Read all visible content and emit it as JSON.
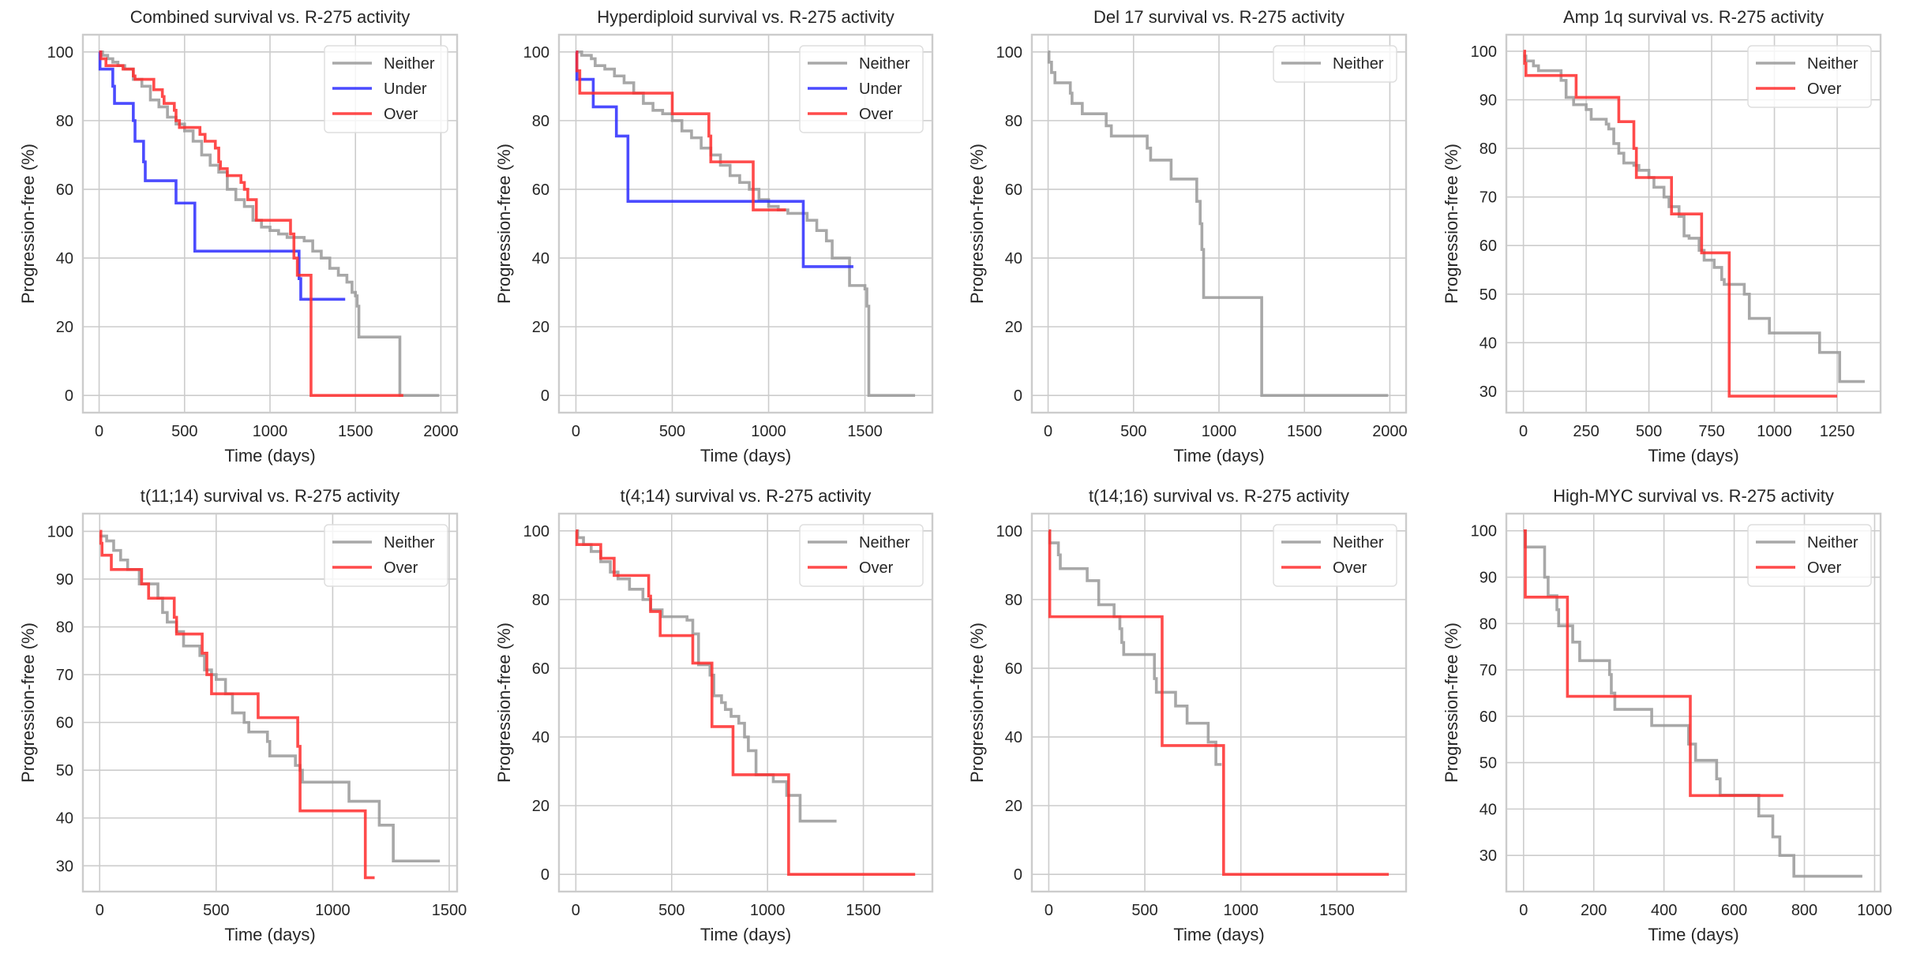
{
  "figure": {
    "background": "#ffffff",
    "grid_color": "#cccccc",
    "text_color": "#262626",
    "series_colors": {
      "Neither": "#999999",
      "Under": "#2b2bff",
      "Over": "#ff2b2b"
    }
  },
  "chart_data": [
    {
      "type": "line",
      "step": true,
      "title": "Combined survival vs. R-275 activity",
      "xlabel": "Time (days)",
      "ylabel": "Progression-free (%)",
      "xlim": [
        -95,
        2095
      ],
      "ylim": [
        -5,
        105
      ],
      "xticks": [
        0,
        500,
        1000,
        1500,
        2000
      ],
      "yticks": [
        0,
        20,
        40,
        60,
        80,
        100
      ],
      "grid": true,
      "legend": "top-right",
      "series": [
        {
          "name": "Neither",
          "x": [
            0,
            20,
            50,
            80,
            110,
            150,
            200,
            250,
            300,
            350,
            400,
            450,
            500,
            550,
            600,
            650,
            700,
            750,
            800,
            850,
            900,
            950,
            1000,
            1050,
            1100,
            1150,
            1200,
            1250,
            1300,
            1350,
            1400,
            1450,
            1480,
            1500,
            1510,
            1520,
            1750,
            1760,
            1990
          ],
          "y": [
            100,
            99,
            98,
            97,
            96,
            95,
            92,
            90,
            86,
            84,
            81,
            79,
            77,
            74,
            70,
            67,
            65,
            60,
            57,
            55,
            51,
            49,
            48,
            47,
            46,
            46,
            45,
            42,
            40,
            37,
            35,
            33,
            30,
            29,
            26,
            17,
            17,
            0,
            0
          ]
        },
        {
          "name": "Under",
          "x": [
            0,
            5,
            80,
            90,
            200,
            210,
            260,
            270,
            450,
            560,
            1170,
            1180,
            1440
          ],
          "y": [
            100,
            95,
            90,
            85,
            80,
            74,
            68,
            62.5,
            56,
            42,
            34,
            28,
            28
          ]
        },
        {
          "name": "Over",
          "x": [
            0,
            10,
            40,
            140,
            200,
            210,
            320,
            330,
            370,
            380,
            440,
            450,
            470,
            480,
            590,
            620,
            680,
            700,
            710,
            750,
            830,
            850,
            870,
            920,
            1120,
            1140,
            1160,
            1240,
            1780
          ],
          "y": [
            100,
            98,
            96,
            95,
            93,
            92,
            89,
            89,
            87,
            85,
            83,
            80,
            78,
            78,
            76,
            74,
            72,
            68,
            66,
            64,
            62,
            60,
            57,
            51,
            47,
            40,
            35,
            0,
            0
          ]
        }
      ]
    },
    {
      "type": "line",
      "step": true,
      "title": "Hyperdiploid survival vs. R-275 activity",
      "xlabel": "Time (days)",
      "ylabel": "Progression-free (%)",
      "xlim": [
        -88,
        1850
      ],
      "ylim": [
        -5,
        105
      ],
      "xticks": [
        0,
        500,
        1000,
        1500
      ],
      "yticks": [
        0,
        20,
        40,
        60,
        80,
        100
      ],
      "grid": true,
      "legend": "top-right",
      "series": [
        {
          "name": "Neither",
          "x": [
            0,
            30,
            80,
            100,
            150,
            200,
            250,
            300,
            350,
            400,
            450,
            500,
            550,
            600,
            650,
            700,
            750,
            800,
            850,
            900,
            950,
            1000,
            1050,
            1100,
            1150,
            1200,
            1250,
            1300,
            1330,
            1400,
            1420,
            1500,
            1510,
            1520,
            1760
          ],
          "y": [
            100,
            99,
            98,
            96,
            95,
            93,
            91,
            88,
            85,
            83,
            82,
            80,
            77,
            75,
            72,
            70,
            67,
            64,
            62,
            60,
            57,
            55,
            54,
            53,
            53,
            51,
            48,
            45,
            40,
            40,
            32,
            31,
            26,
            0,
            0
          ]
        },
        {
          "name": "Under",
          "x": [
            0,
            5,
            90,
            210,
            270,
            1180,
            1440
          ],
          "y": [
            100,
            92,
            84,
            75.5,
            56.5,
            37.5,
            37.5
          ]
        },
        {
          "name": "Over",
          "x": [
            0,
            5,
            20,
            500,
            690,
            700,
            920,
            1090
          ],
          "y": [
            100,
            94.5,
            88,
            82,
            75.5,
            68,
            54,
            54
          ]
        }
      ]
    },
    {
      "type": "line",
      "step": true,
      "title": "Del 17 survival vs. R-275 activity",
      "xlabel": "Time (days)",
      "ylabel": "Progression-free (%)",
      "xlim": [
        -95,
        2095
      ],
      "ylim": [
        -5,
        105
      ],
      "xticks": [
        0,
        500,
        1000,
        1500,
        2000
      ],
      "yticks": [
        0,
        20,
        40,
        60,
        80,
        100
      ],
      "grid": true,
      "legend": "top-right",
      "series": [
        {
          "name": "Neither",
          "x": [
            0,
            5,
            20,
            40,
            130,
            140,
            200,
            340,
            370,
            580,
            600,
            720,
            870,
            890,
            900,
            910,
            1250,
            1990
          ],
          "y": [
            100,
            97,
            94,
            91,
            88,
            85,
            82,
            78.5,
            75.5,
            72,
            68.5,
            63,
            56.5,
            50,
            42.5,
            28.5,
            0,
            0
          ]
        }
      ]
    },
    {
      "type": "line",
      "step": true,
      "title": "Amp 1q survival vs. R-275 activity",
      "xlabel": "Time (days)",
      "ylabel": "Progression-free (%)",
      "xlim": [
        -68,
        1423
      ],
      "ylim": [
        25.6,
        103.4
      ],
      "xticks": [
        0,
        250,
        500,
        750,
        1000,
        1250
      ],
      "yticks": [
        30,
        40,
        50,
        60,
        70,
        80,
        90,
        100
      ],
      "grid": true,
      "legend": "top-right",
      "series": [
        {
          "name": "Neither",
          "x": [
            0,
            10,
            40,
            60,
            140,
            150,
            170,
            200,
            250,
            270,
            330,
            340,
            360,
            380,
            400,
            440,
            460,
            500,
            520,
            560,
            580,
            620,
            640,
            660,
            700,
            720,
            760,
            790,
            800,
            880,
            900,
            980,
            1180,
            1260,
            1360
          ],
          "y": [
            99,
            98,
            97,
            96,
            96,
            94,
            90.5,
            89,
            88,
            86,
            85,
            84,
            81,
            79,
            77,
            76.5,
            75.5,
            74,
            72,
            70,
            68,
            66,
            62,
            61.5,
            59,
            57,
            55.5,
            53,
            52,
            50,
            45,
            42,
            38,
            32,
            32
          ]
        },
        {
          "name": "Over",
          "x": [
            0,
            5,
            10,
            210,
            380,
            440,
            450,
            590,
            710,
            820,
            1250
          ],
          "y": [
            100,
            97.5,
            95,
            90.5,
            85.5,
            80,
            74,
            66.5,
            58.5,
            29,
            29
          ]
        }
      ]
    },
    {
      "type": "line",
      "step": true,
      "title": "t(11;14) survival vs. R-275 activity",
      "xlabel": "Time (days)",
      "ylabel": "Progression-free (%)",
      "xlim": [
        -72,
        1534
      ],
      "ylim": [
        24.6,
        103.7
      ],
      "xticks": [
        0,
        500,
        1000,
        1500
      ],
      "yticks": [
        30,
        40,
        50,
        60,
        70,
        80,
        90,
        100
      ],
      "grid": true,
      "legend": "top-right",
      "series": [
        {
          "name": "Neither",
          "x": [
            0,
            30,
            60,
            90,
            120,
            170,
            250,
            270,
            290,
            330,
            360,
            430,
            450,
            480,
            500,
            540,
            570,
            620,
            640,
            720,
            730,
            840,
            860,
            870,
            1070,
            1200,
            1260,
            1460
          ],
          "y": [
            99,
            98,
            96,
            94,
            92,
            89,
            86,
            83,
            81,
            79,
            76,
            74,
            71,
            70,
            69,
            66,
            62,
            60,
            58,
            56,
            53,
            51,
            50,
            47.5,
            43.5,
            38.5,
            31,
            31
          ]
        },
        {
          "name": "Over",
          "x": [
            0,
            5,
            10,
            50,
            180,
            210,
            320,
            330,
            440,
            460,
            480,
            680,
            850,
            860,
            1140,
            1180
          ],
          "y": [
            100,
            97.5,
            95,
            92,
            89,
            86,
            82,
            78.5,
            74.5,
            70,
            66,
            61,
            55,
            41.5,
            27.5,
            27.5
          ]
        }
      ]
    },
    {
      "type": "line",
      "step": true,
      "title": "t(4;14) survival vs. R-275 activity",
      "xlabel": "Time (days)",
      "ylabel": "Progression-free (%)",
      "xlim": [
        -88,
        1860
      ],
      "ylim": [
        -5,
        105
      ],
      "xticks": [
        0,
        500,
        1000,
        1500
      ],
      "yticks": [
        0,
        20,
        40,
        60,
        80,
        100
      ],
      "grid": true,
      "legend": "top-right",
      "series": [
        {
          "name": "Neither",
          "x": [
            0,
            10,
            40,
            80,
            130,
            180,
            220,
            280,
            350,
            390,
            450,
            580,
            610,
            640,
            700,
            720,
            760,
            780,
            810,
            850,
            880,
            900,
            940,
            1030,
            1100,
            1170,
            1360
          ],
          "y": [
            100,
            98,
            96,
            94,
            91,
            88,
            86,
            83,
            80,
            77,
            75,
            74,
            70,
            61,
            58,
            52,
            50,
            48,
            46,
            44,
            40,
            36,
            29,
            27,
            23,
            15.5,
            15.5
          ]
        },
        {
          "name": "Over",
          "x": [
            0,
            5,
            130,
            200,
            380,
            390,
            440,
            610,
            710,
            820,
            1110,
            1770
          ],
          "y": [
            100,
            96,
            92,
            87,
            81,
            76.5,
            69.5,
            61.5,
            43,
            29,
            0,
            0
          ]
        }
      ]
    },
    {
      "type": "line",
      "step": true,
      "title": "t(14;16) survival vs. R-275 activity",
      "xlabel": "Time (days)",
      "ylabel": "Progression-free (%)",
      "xlim": [
        -88,
        1860
      ],
      "ylim": [
        -5,
        105
      ],
      "xticks": [
        0,
        500,
        1000,
        1500
      ],
      "yticks": [
        0,
        20,
        40,
        60,
        80,
        100
      ],
      "grid": true,
      "legend": "top-right",
      "series": [
        {
          "name": "Neither",
          "x": [
            0,
            5,
            50,
            60,
            200,
            260,
            340,
            370,
            380,
            390,
            550,
            560,
            580,
            660,
            720,
            830,
            870,
            900
          ],
          "y": [
            100,
            96.5,
            93,
            89,
            85.5,
            78.5,
            75,
            71.5,
            67.5,
            64,
            57,
            53,
            53,
            49,
            44,
            38.5,
            32,
            32
          ]
        },
        {
          "name": "Over",
          "x": [
            0,
            5,
            590,
            910,
            1770
          ],
          "y": [
            100,
            75,
            37.5,
            0,
            0
          ]
        }
      ]
    },
    {
      "type": "line",
      "step": true,
      "title": "High-MYC survival vs. R-275 activity",
      "xlabel": "Time (days)",
      "ylabel": "Progression-free (%)",
      "xlim": [
        -49,
        1017
      ],
      "ylim": [
        22.2,
        103.7
      ],
      "xticks": [
        0,
        200,
        400,
        600,
        800,
        1000
      ],
      "yticks": [
        30,
        40,
        50,
        60,
        70,
        80,
        90,
        100
      ],
      "grid": true,
      "legend": "top-right",
      "series": [
        {
          "name": "Neither",
          "x": [
            0,
            5,
            60,
            70,
            95,
            100,
            140,
            160,
            245,
            250,
            260,
            365,
            470,
            490,
            550,
            560,
            670,
            710,
            730,
            770,
            965
          ],
          "y": [
            100,
            96.5,
            90,
            86,
            83,
            79.5,
            76,
            72,
            69,
            65,
            61.5,
            58,
            54,
            50.5,
            46.5,
            43,
            38.5,
            34,
            30,
            25.5,
            25.5
          ]
        },
        {
          "name": "Over",
          "x": [
            0,
            5,
            125,
            475,
            740
          ],
          "y": [
            100,
            85.7,
            64.3,
            42.9,
            42.9
          ]
        }
      ]
    }
  ]
}
